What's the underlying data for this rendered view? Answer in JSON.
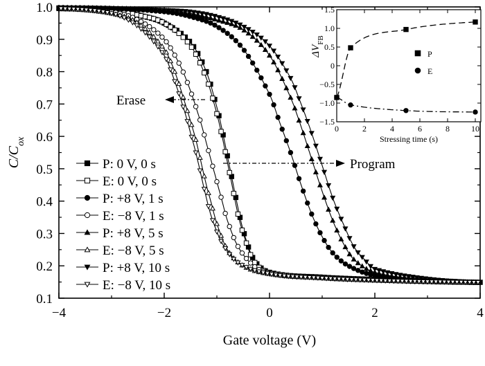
{
  "chart_data": [
    {
      "type": "line",
      "title": "",
      "xlabel": "Gate voltage (V)",
      "ylabel": "C/C_ox",
      "xlim": [
        -4,
        4
      ],
      "ylim": [
        0.1,
        1.0
      ],
      "xticks": [
        "−4",
        "−2",
        "0",
        "2",
        "4"
      ],
      "yticks": [
        "0.1",
        "0.2",
        "0.3",
        "0.4",
        "0.5",
        "0.6",
        "0.7",
        "0.8",
        "0.9",
        "1.0"
      ],
      "legend_position": "left",
      "annotations": [
        "Erase",
        "Program"
      ],
      "series": [
        {
          "name": "P: 0 V, 0 s",
          "marker": "square-filled",
          "x": [
            -4,
            -3,
            -2.5,
            -2,
            -1.5,
            -1.2,
            -1.0,
            -0.9,
            -0.8,
            -0.7,
            -0.6,
            -0.5,
            -0.3,
            0,
            1,
            2,
            3,
            4
          ],
          "y": [
            0.995,
            0.99,
            0.975,
            0.95,
            0.89,
            0.8,
            0.69,
            0.62,
            0.54,
            0.46,
            0.38,
            0.31,
            0.22,
            0.18,
            0.165,
            0.158,
            0.152,
            0.149
          ]
        },
        {
          "name": "E: 0 V, 0 s",
          "marker": "square-open",
          "x": [
            -4,
            -3,
            -2.5,
            -2,
            -1.5,
            -1.2,
            -1.0,
            -0.9,
            -0.8,
            -0.7,
            -0.6,
            -0.5,
            -0.3,
            0,
            1,
            2,
            3,
            4
          ],
          "y": [
            0.995,
            0.99,
            0.975,
            0.95,
            0.88,
            0.78,
            0.67,
            0.6,
            0.52,
            0.44,
            0.36,
            0.3,
            0.215,
            0.178,
            0.164,
            0.157,
            0.152,
            0.149
          ]
        },
        {
          "name": "P: +8 V, 1 s",
          "marker": "circle-filled",
          "x": [
            -4,
            -3,
            -2,
            -1.5,
            -1,
            -0.5,
            0,
            0.2,
            0.4,
            0.6,
            0.8,
            1.0,
            1.2,
            1.5,
            2,
            3,
            4
          ],
          "y": [
            0.998,
            0.995,
            0.985,
            0.97,
            0.94,
            0.87,
            0.73,
            0.64,
            0.55,
            0.45,
            0.36,
            0.29,
            0.24,
            0.2,
            0.17,
            0.155,
            0.149
          ]
        },
        {
          "name": "E: −8 V, 1 s",
          "marker": "circle-open",
          "x": [
            -4,
            -3,
            -2.5,
            -2,
            -1.7,
            -1.5,
            -1.3,
            -1.2,
            -1.0,
            -0.9,
            -0.8,
            -0.6,
            -0.3,
            0,
            1,
            2,
            3,
            4
          ],
          "y": [
            0.995,
            0.985,
            0.96,
            0.9,
            0.82,
            0.74,
            0.64,
            0.58,
            0.46,
            0.4,
            0.34,
            0.26,
            0.2,
            0.178,
            0.163,
            0.156,
            0.151,
            0.149
          ]
        },
        {
          "name": "P: +8 V, 5 s",
          "marker": "triangle-filled",
          "x": [
            -4,
            -3,
            -2,
            -1.5,
            -1,
            -0.5,
            0,
            0.4,
            0.6,
            0.8,
            1.0,
            1.2,
            1.4,
            1.6,
            2,
            3,
            4
          ],
          "y": [
            0.998,
            0.996,
            0.99,
            0.98,
            0.96,
            0.93,
            0.85,
            0.72,
            0.63,
            0.53,
            0.43,
            0.34,
            0.27,
            0.22,
            0.18,
            0.157,
            0.149
          ]
        },
        {
          "name": "E: −8 V, 5 s",
          "marker": "triangle-open",
          "x": [
            -4,
            -3,
            -2.5,
            -2,
            -1.8,
            -1.6,
            -1.4,
            -1.3,
            -1.2,
            -1.1,
            -1.0,
            -0.8,
            -0.5,
            0,
            1,
            2,
            3,
            4
          ],
          "y": [
            0.995,
            0.98,
            0.95,
            0.87,
            0.8,
            0.7,
            0.59,
            0.52,
            0.45,
            0.39,
            0.33,
            0.25,
            0.2,
            0.175,
            0.162,
            0.155,
            0.151,
            0.149
          ]
        },
        {
          "name": "P: +8 V, 10 s",
          "marker": "triangle-down-filled",
          "x": [
            -4,
            -3,
            -2,
            -1.5,
            -1,
            -0.5,
            0,
            0.4,
            0.6,
            0.8,
            1.0,
            1.2,
            1.4,
            1.6,
            1.8,
            2,
            3,
            4
          ],
          "y": [
            0.998,
            0.996,
            0.99,
            0.985,
            0.97,
            0.94,
            0.88,
            0.78,
            0.7,
            0.61,
            0.51,
            0.41,
            0.33,
            0.26,
            0.22,
            0.19,
            0.16,
            0.15
          ]
        },
        {
          "name": "E: −8 V, 10 s",
          "marker": "triangle-down-open",
          "x": [
            -4,
            -3,
            -2.5,
            -2,
            -1.8,
            -1.6,
            -1.5,
            -1.4,
            -1.3,
            -1.2,
            -1.1,
            -0.9,
            -0.6,
            0,
            1,
            2,
            3,
            4
          ],
          "y": [
            0.995,
            0.98,
            0.94,
            0.85,
            0.77,
            0.67,
            0.61,
            0.55,
            0.48,
            0.41,
            0.35,
            0.27,
            0.21,
            0.175,
            0.162,
            0.155,
            0.151,
            0.149
          ]
        }
      ]
    },
    {
      "type": "line",
      "title": "",
      "xlabel": "Stressing time (s)",
      "ylabel": "ΔV_FB",
      "xlim": [
        0,
        10.4
      ],
      "ylim": [
        -1.5,
        1.5
      ],
      "xticks": [
        "0",
        "2",
        "4",
        "6",
        "8",
        "10"
      ],
      "yticks": [
        "−1.5",
        "−1.0",
        "−0.5",
        "0",
        "0.5",
        "1.0",
        "1.5"
      ],
      "legend_position": "right",
      "series": [
        {
          "name": "P",
          "marker": "square-filled",
          "x": [
            0,
            1,
            5,
            10
          ],
          "y": [
            -0.85,
            0.48,
            0.97,
            1.17
          ]
        },
        {
          "name": "E",
          "marker": "circle-filled",
          "x": [
            0,
            1,
            5,
            10
          ],
          "y": [
            -0.85,
            -1.05,
            -1.2,
            -1.24
          ]
        }
      ]
    }
  ]
}
